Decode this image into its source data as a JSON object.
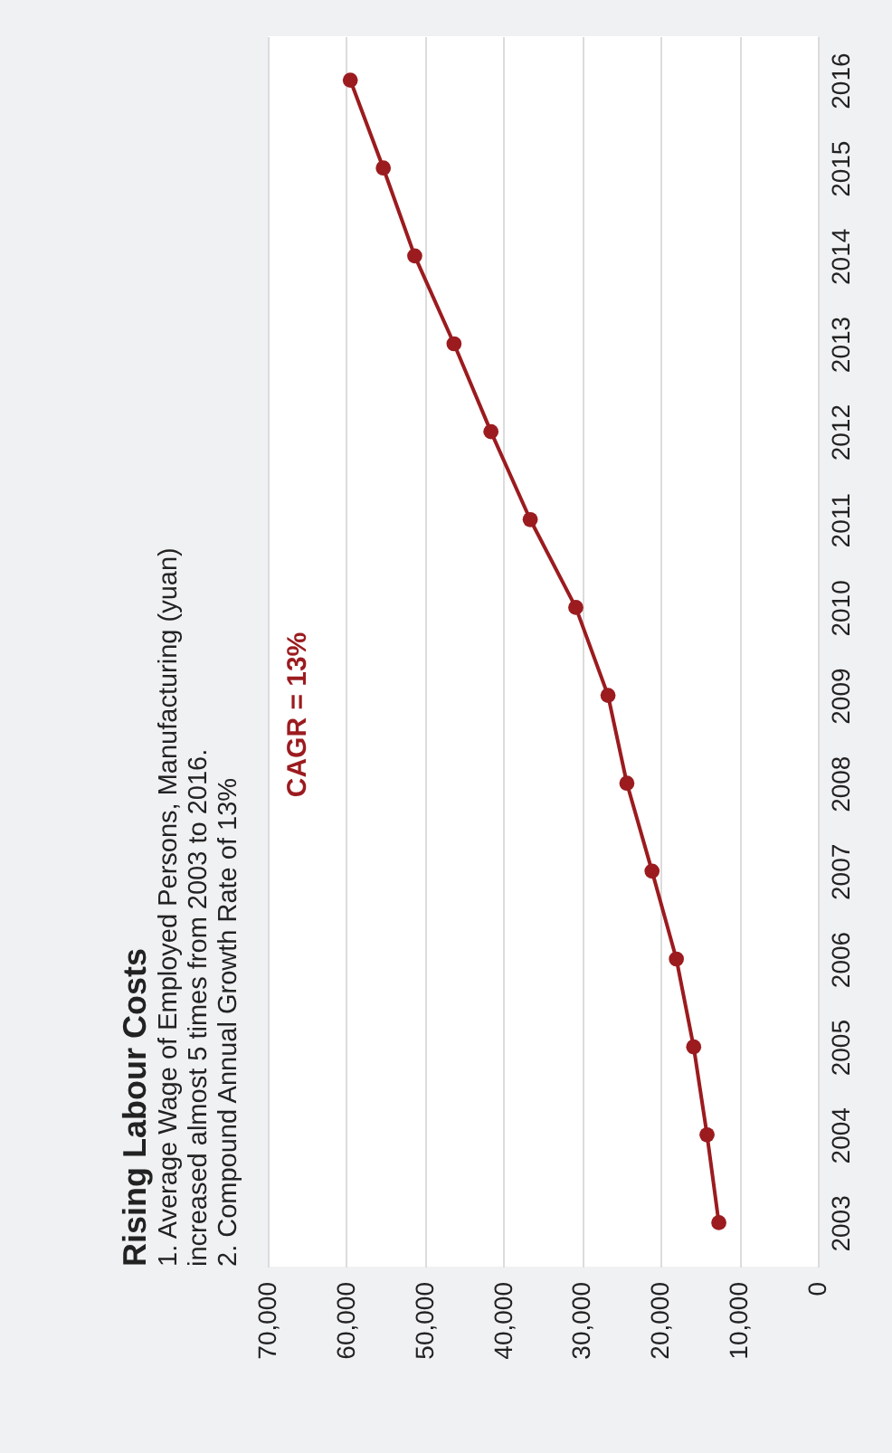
{
  "chart_data": {
    "type": "line",
    "title": "Rising Labour Costs",
    "subtitle": [
      "1. Average Wage of Employed Persons, Manufacturing (yuan)",
      "increased almost 5 times from 2003 to 2016.",
      "2. Compound Annual Growth Rate of 13%"
    ],
    "series": [
      {
        "color": "#9b1b1f",
        "x": [
          12600,
          14100,
          15800,
          18000,
          21100,
          24300,
          26700,
          30800,
          36600,
          41600,
          46300,
          51300,
          55300,
          59500
        ],
        "values": [
          2003,
          2004,
          2005,
          2006,
          2007,
          2008,
          2009,
          2010,
          2011,
          2012,
          2013,
          2014,
          2015,
          2016
        ]
      }
    ],
    "xlim": [
      70000,
      0
    ],
    "xticks": [
      {
        "value": 0,
        "label": "0"
      },
      {
        "value": 10000,
        "label": "10,000"
      },
      {
        "value": 20000,
        "label": "20,000"
      },
      {
        "value": 30000,
        "label": "30,000"
      },
      {
        "value": 40000,
        "label": "40,000"
      },
      {
        "value": 50000,
        "label": "50,000"
      },
      {
        "value": 60000,
        "label": "60,000"
      },
      {
        "value": 70000,
        "label": "70,000"
      }
    ],
    "ylim": [
      2002.5,
      2016.5
    ],
    "yticks": [
      2003,
      2004,
      2005,
      2006,
      2007,
      2008,
      2009,
      2010,
      2011,
      2012,
      2013,
      2014,
      2015,
      2016
    ],
    "grid": "x",
    "marker": "circle",
    "line_style": "solid",
    "annotations": [
      "CAGR = 13%"
    ]
  }
}
